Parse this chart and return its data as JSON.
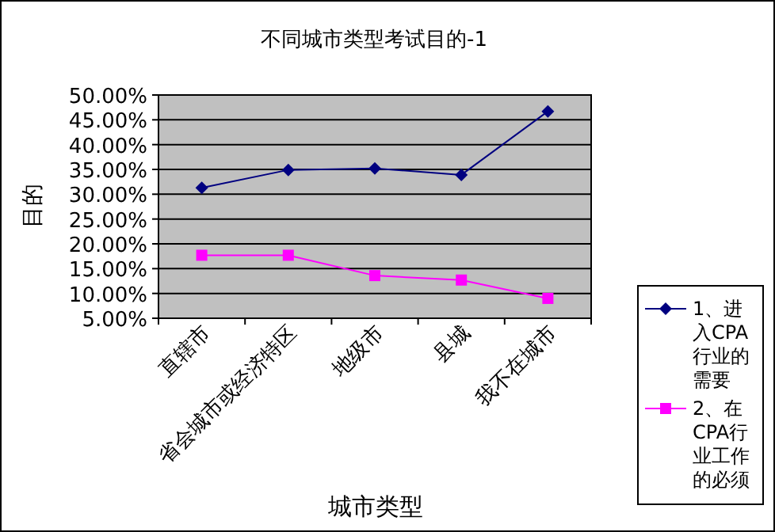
{
  "chart_data": {
    "type": "line",
    "title": "不同城市类型考试目的-1",
    "xlabel": "城市类型",
    "ylabel": "目的",
    "categories": [
      "直辖市",
      "省会城市或经济特区",
      "地级市",
      "县城",
      "我不在城市"
    ],
    "series": [
      {
        "name": "1、进入CPA行业的需要",
        "color": "#000080",
        "marker": "diamond",
        "values": [
          31.3,
          34.9,
          35.2,
          33.9,
          46.7
        ]
      },
      {
        "name": "2、在CPA行业工作的必须",
        "color": "#ff00ff",
        "marker": "square",
        "values": [
          17.7,
          17.7,
          13.6,
          12.7,
          9.0
        ]
      }
    ],
    "ylim": [
      5,
      50
    ],
    "yticks": [
      {
        "value": 5,
        "label": "5.00%"
      },
      {
        "value": 10,
        "label": "10.00%"
      },
      {
        "value": 15,
        "label": "15.00%"
      },
      {
        "value": 20,
        "label": "20.00%"
      },
      {
        "value": 25,
        "label": "25.00%"
      },
      {
        "value": 30,
        "label": "30.00%"
      },
      {
        "value": 35,
        "label": "35.00%"
      },
      {
        "value": 40,
        "label": "40.00%"
      },
      {
        "value": 45,
        "label": "45.00%"
      },
      {
        "value": 50,
        "label": "50.00%"
      }
    ],
    "grid": "y",
    "legend": "right"
  }
}
